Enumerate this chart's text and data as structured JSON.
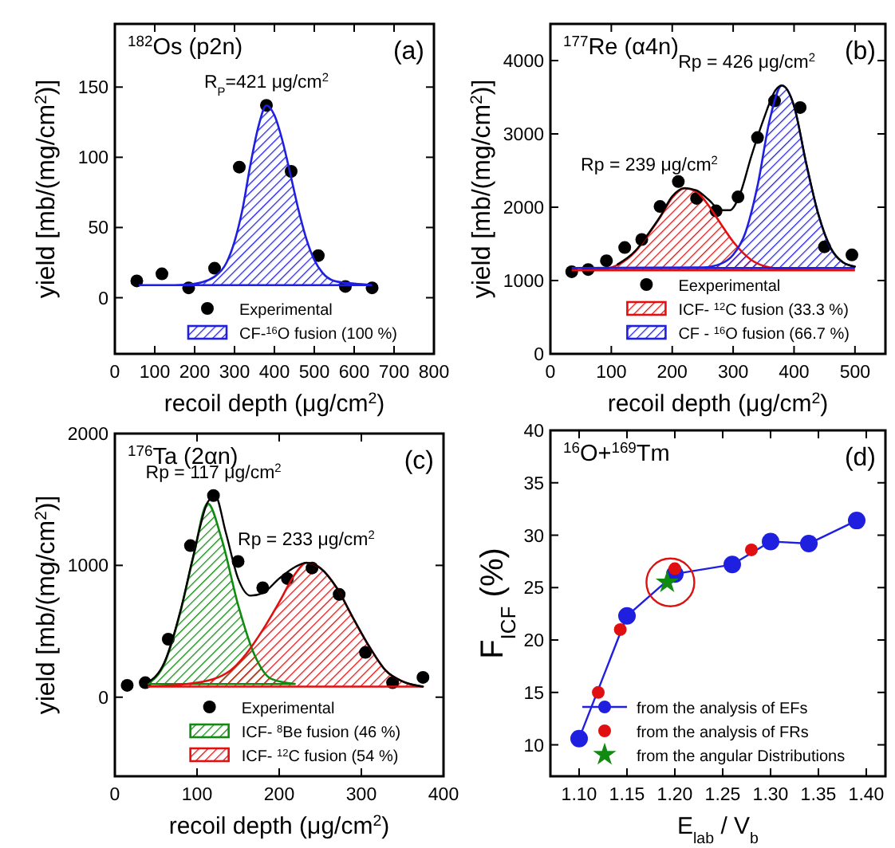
{
  "chart_data": [
    {
      "type": "scatter",
      "title": "$^{182}$Os (p2n)",
      "xlabel": "recoil depth (μg/cm$^{2}$)",
      "ylabel": "yield [mb/(mg/cm$^{2}$)]",
      "xlim": [
        0,
        800
      ],
      "xticks": [
        0,
        100,
        200,
        300,
        400,
        500,
        600,
        700,
        800
      ],
      "ylim": [
        -40,
        195
      ],
      "yticks": [
        0,
        50,
        100,
        150
      ],
      "legend": "bottom",
      "annotations": [
        "(a)",
        {
          "text": "R$_{P}$=421 μg/cm$^{2}$",
          "x": 380,
          "y": 137
        }
      ],
      "series": [
        {
          "name": "Experimental",
          "color": "#000000",
          "marker": "circle",
          "x": [
            55,
            118,
            185,
            250,
            312,
            380,
            442,
            510,
            578,
            645
          ],
          "values": [
            12,
            17,
            7,
            21,
            93,
            137,
            90,
            30,
            8,
            7
          ]
        },
        {
          "name": "CF-$^{16}$O fusion (100 %)",
          "type": "area",
          "color": "#1f1fe0",
          "x": [
            60,
            150,
            200,
            250,
            280,
            300,
            320,
            340,
            360,
            380,
            400,
            420,
            440,
            460,
            480,
            500,
            520,
            550,
            600,
            645
          ],
          "values": [
            9,
            9,
            10,
            15,
            25,
            40,
            63,
            95,
            122,
            137,
            130,
            112,
            88,
            63,
            42,
            27,
            18,
            12,
            10,
            9
          ]
        }
      ]
    },
    {
      "type": "scatter",
      "title": "$^{177}$Re (α4n)",
      "xlabel": "recoil depth (μg/cm$^{2}$)",
      "ylabel": "yield [mb/(mg/cm$^{2}$)]",
      "xlim": [
        0,
        550
      ],
      "xticks": [
        0,
        100,
        200,
        300,
        400,
        500
      ],
      "ylim": [
        0,
        4500
      ],
      "yticks": [
        0,
        1000,
        2000,
        3000,
        4000
      ],
      "legend": "bottom",
      "annotations": [
        "(b)",
        {
          "text": "Rp = 426 μg/cm$^{2}$",
          "x": 380,
          "y": 3660
        },
        {
          "text": "Rp = 239 μg/cm$^{2}$",
          "x": 220,
          "y": 2260
        }
      ],
      "series": [
        {
          "name": "Eexperimental",
          "color": "#000000",
          "marker": "circle",
          "x": [
            35,
            62,
            92,
            122,
            150,
            180,
            210,
            240,
            272,
            308,
            340,
            368,
            410,
            450,
            495
          ],
          "values": [
            1120,
            1150,
            1270,
            1450,
            1560,
            2010,
            2350,
            2120,
            1950,
            2140,
            2950,
            3450,
            3360,
            1460,
            1350
          ]
        },
        {
          "name": "ICF- $^{12}$C fusion (33.3 %)",
          "type": "area",
          "color": "#e01010",
          "x": [
            35,
            80,
            110,
            140,
            160,
            180,
            200,
            220,
            240,
            260,
            280,
            300,
            330,
            360,
            400,
            500
          ],
          "values": [
            1140,
            1150,
            1210,
            1400,
            1620,
            1860,
            2130,
            2260,
            2210,
            2020,
            1770,
            1530,
            1280,
            1180,
            1150,
            1140
          ]
        },
        {
          "name": "CF - $^{16}$O fusion (66.7 %)",
          "type": "area",
          "color": "#1f1fe0",
          "x": [
            35,
            250,
            280,
            300,
            320,
            340,
            360,
            380,
            400,
            420,
            440,
            460,
            480,
            500
          ],
          "values": [
            1170,
            1180,
            1230,
            1350,
            1650,
            2290,
            3190,
            3660,
            3380,
            2590,
            1900,
            1440,
            1250,
            1190
          ]
        },
        {
          "type": "line",
          "color": "#000000",
          "x": [
            110,
            140,
            160,
            180,
            200,
            220,
            240,
            260,
            280,
            295,
            310,
            330,
            350,
            370,
            380,
            400,
            420,
            440,
            460,
            480,
            500
          ],
          "values": [
            1220,
            1410,
            1630,
            1870,
            2150,
            2260,
            2230,
            2100,
            1960,
            1960,
            2150,
            2700,
            3200,
            3600,
            3660,
            3380,
            2600,
            1900,
            1450,
            1250,
            1190
          ]
        }
      ]
    },
    {
      "type": "scatter",
      "title": "$^{176}$Ta (2αn)",
      "xlabel": "recoil depth (μg/cm$^{2}$)",
      "ylabel": "yield [mb/(mg/cm$^{2}$)]",
      "xlim": [
        0,
        400
      ],
      "xticks": [
        0,
        100,
        200,
        300,
        400
      ],
      "ylim": [
        -600,
        2000
      ],
      "yticks": [
        0,
        1000,
        2000
      ],
      "legend": "bottom",
      "annotations": [
        "(c)",
        {
          "text": "Rp = 117 μg/cm$^{2}$",
          "x": 120,
          "y": 1530
        },
        {
          "text": "Rp = 233 μg/cm$^{2}$",
          "x": 233,
          "y": 1020
        }
      ],
      "series": [
        {
          "name": "Experimental",
          "color": "#000000",
          "marker": "circle",
          "x": [
            15,
            37,
            65,
            92,
            120,
            150,
            180,
            210,
            240,
            273,
            305,
            338,
            375
          ],
          "values": [
            90,
            110,
            440,
            1150,
            1530,
            1030,
            830,
            900,
            980,
            780,
            340,
            110,
            150
          ]
        },
        {
          "name": "ICF- $^{8}$Be fusion (46 %)",
          "type": "area",
          "color": "#108a10",
          "x": [
            40,
            60,
            80,
            95,
            113,
            130,
            150,
            170,
            190,
            220
          ],
          "values": [
            100,
            250,
            650,
            1050,
            1470,
            1200,
            700,
            320,
            140,
            100
          ]
        },
        {
          "name": "ICF- $^{12}$C fusion (54 %)",
          "type": "area",
          "color": "#e01010",
          "x": [
            40,
            100,
            140,
            160,
            180,
            200,
            220,
            233,
            250,
            270,
            290,
            310,
            330,
            350,
            375
          ],
          "values": [
            80,
            110,
            200,
            330,
            510,
            720,
            940,
            1020,
            980,
            830,
            600,
            380,
            200,
            120,
            80
          ]
        },
        {
          "type": "line",
          "color": "#000000",
          "x": [
            40,
            60,
            80,
            95,
            113,
            122,
            135,
            150,
            165,
            180,
            200,
            220,
            233,
            250,
            270,
            290,
            310,
            330,
            350,
            375
          ],
          "values": [
            110,
            260,
            660,
            1060,
            1480,
            1530,
            1250,
            900,
            770,
            790,
            900,
            990,
            1020,
            980,
            830,
            600,
            380,
            200,
            120,
            80
          ]
        }
      ]
    },
    {
      "type": "scatter",
      "title": "$^{16}$O+$^{169}$Tm",
      "xlabel": "E$_{lab}$ / V$_{b}$",
      "ylabel": "F$_{ICF}$ (%)",
      "xlim": [
        1.07,
        1.42
      ],
      "xticks": [
        {
          "value": 1.1,
          "label": "1.10"
        },
        {
          "value": 1.15,
          "label": "1.15"
        },
        {
          "value": 1.2,
          "label": "1.20"
        },
        {
          "value": 1.25,
          "label": "1.25"
        },
        {
          "value": 1.3,
          "label": "1.30"
        },
        {
          "value": 1.35,
          "label": "1.35"
        },
        {
          "value": 1.4,
          "label": "1.40"
        }
      ],
      "ylim": [
        7,
        40
      ],
      "yticks": [
        10,
        15,
        20,
        25,
        30,
        35,
        40
      ],
      "legend": "bottom right",
      "annotations": [
        "(d)"
      ],
      "series": [
        {
          "name": "from the analysis of EFs",
          "type": "line",
          "color": "#1f1fe0",
          "marker": "circle",
          "x": [
            1.1,
            1.15,
            1.2,
            1.26,
            1.3,
            1.34,
            1.39
          ],
          "values": [
            10.6,
            22.3,
            26.3,
            27.2,
            29.4,
            29.2,
            31.4
          ]
        },
        {
          "name": "from the analysis of FRs",
          "color": "#e01010",
          "marker": "circle",
          "x": [
            1.12,
            1.143,
            1.2,
            1.28
          ],
          "values": [
            15.0,
            21.0,
            26.8,
            28.6
          ]
        },
        {
          "name": "from the angular Distributions",
          "color": "#108a10",
          "marker": "star",
          "x": [
            1.192
          ],
          "values": [
            25.5
          ]
        }
      ]
    }
  ]
}
